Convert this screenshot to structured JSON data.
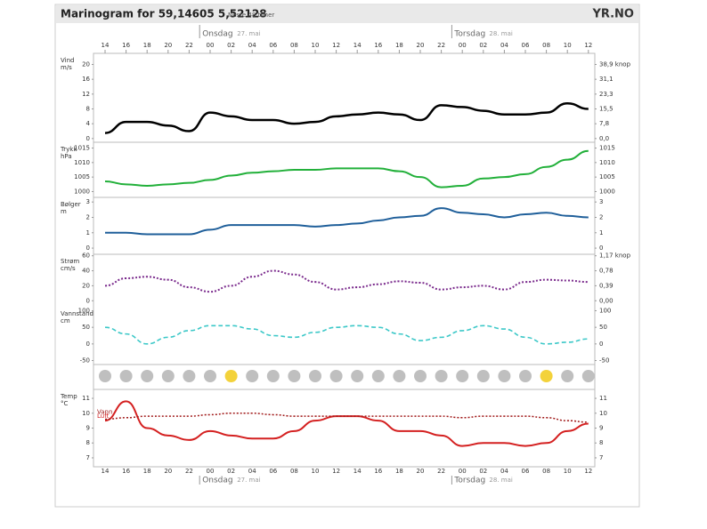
{
  "header": {
    "title": "Marinogram for 59,14605 5,52128",
    "subtitle": "Neste 48 timer",
    "logo": "YR.NO"
  },
  "time_axis": {
    "categories": [
      "14",
      "16",
      "18",
      "20",
      "22",
      "00",
      "02",
      "04",
      "06",
      "08",
      "10",
      "12",
      "14",
      "16",
      "18",
      "20",
      "22",
      "00",
      "02",
      "04",
      "06",
      "08",
      "10",
      "12"
    ],
    "days": [
      {
        "name": "Onsdag",
        "date": "27. mai",
        "start": 5
      },
      {
        "name": "Torsdag",
        "date": "28. mai",
        "start": 17
      }
    ]
  },
  "chart_data": [
    {
      "type": "line",
      "label": "Vind",
      "unit": "m/s",
      "ylim": [
        -1,
        23
      ],
      "yticks": [
        0,
        4,
        8,
        12,
        16,
        20
      ],
      "y2ticks": [
        {
          "value": 0,
          "label": "0,0"
        },
        {
          "value": 4,
          "label": "7,8"
        },
        {
          "value": 8,
          "label": "15,5"
        },
        {
          "value": 12,
          "label": "23,3"
        },
        {
          "value": 16,
          "label": "31,1"
        },
        {
          "value": 20,
          "label": "38,9 knop"
        }
      ],
      "series": [
        {
          "color": "#000000",
          "width": 2.5,
          "values": [
            1.5,
            4.5,
            4.5,
            3.5,
            2,
            7,
            6,
            5,
            5,
            4,
            4.5,
            6,
            6.5,
            7,
            6.5,
            5,
            9,
            8.5,
            7.5,
            6.5,
            6.5,
            7,
            9.5,
            8
          ]
        }
      ]
    },
    {
      "type": "line",
      "label": "Trykk",
      "unit": "hPa",
      "ylim": [
        998,
        1017
      ],
      "yticks": [
        1000,
        1005,
        1010,
        1015
      ],
      "y2ticks": [
        1000,
        1005,
        1010,
        1015
      ],
      "series": [
        {
          "color": "#22b03a",
          "width": 2,
          "values": [
            1003.5,
            1002.5,
            1002,
            1002.5,
            1003,
            1004,
            1005.5,
            1006.5,
            1007,
            1007.5,
            1007.5,
            1008,
            1008,
            1008,
            1007,
            1005,
            1001.5,
            1002,
            1004.5,
            1005,
            1006,
            1008.5,
            1011,
            1014
          ]
        }
      ]
    },
    {
      "type": "line",
      "label": "Bølger",
      "unit": "m",
      "ylim": [
        -0.4,
        3.3
      ],
      "yticks": [
        0,
        1,
        2,
        3
      ],
      "y2ticks": [
        0,
        1,
        2,
        3
      ],
      "series": [
        {
          "color": "#1f5f9a",
          "width": 2,
          "values": [
            1,
            1,
            0.9,
            0.9,
            0.9,
            1.2,
            1.5,
            1.5,
            1.5,
            1.5,
            1.4,
            1.5,
            1.6,
            1.8,
            2,
            2.1,
            2.6,
            2.3,
            2.2,
            2,
            2.2,
            2.3,
            2.1,
            2
          ]
        }
      ]
    },
    {
      "type": "line",
      "label": "Strøm",
      "unit": "cm/s",
      "ylim": [
        -8,
        62
      ],
      "yticks": [
        0,
        20,
        40,
        60
      ],
      "y2ticks": [
        {
          "value": 0,
          "label": "0,00"
        },
        {
          "value": 20,
          "label": "0,39"
        },
        {
          "value": 40,
          "label": "0,78"
        },
        {
          "value": 60,
          "label": "1,17 knop"
        }
      ],
      "series": [
        {
          "color": "#7a2a8c",
          "width": 2,
          "dash": "2 2",
          "values": [
            20,
            30,
            32,
            28,
            18,
            12,
            20,
            32,
            40,
            35,
            25,
            15,
            18,
            22,
            26,
            24,
            15,
            18,
            20,
            15,
            25,
            28,
            27,
            25
          ]
        }
      ]
    },
    {
      "type": "line",
      "label": "Vannstand",
      "unit": "cm",
      "ylim": [
        -62,
        112
      ],
      "yticks": [
        -50,
        0,
        50,
        100
      ],
      "y2ticks": [
        -50,
        0,
        50,
        100
      ],
      "series": [
        {
          "color": "#3cc8c8",
          "width": 1.6,
          "dash": "5 3",
          "values": [
            50,
            30,
            0,
            20,
            40,
            55,
            55,
            45,
            25,
            20,
            35,
            50,
            55,
            50,
            30,
            10,
            20,
            40,
            55,
            45,
            20,
            0,
            5,
            15
          ]
        }
      ]
    },
    {
      "type": "line",
      "label": "Temp",
      "unit": "°C",
      "ylim": [
        6.4,
        11.6
      ],
      "yticks": [
        7,
        8,
        9,
        10,
        11
      ],
      "y2ticks": [
        7,
        8,
        9,
        10,
        11
      ],
      "series": [
        {
          "name": "Luft",
          "color": "#d42020",
          "width": 2,
          "values": [
            9.5,
            10.8,
            9,
            8.5,
            8.2,
            8.8,
            8.5,
            8.3,
            8.3,
            8.8,
            9.5,
            9.8,
            9.8,
            9.5,
            8.8,
            8.8,
            8.5,
            7.8,
            8,
            8,
            7.8,
            8,
            8.8,
            9.3
          ]
        },
        {
          "name": "Vann",
          "color": "#a01818",
          "width": 1.5,
          "dash": "2 2",
          "values": [
            9.6,
            9.7,
            9.8,
            9.8,
            9.8,
            9.9,
            10,
            10,
            9.9,
            9.8,
            9.8,
            9.8,
            9.8,
            9.8,
            9.8,
            9.8,
            9.8,
            9.7,
            9.8,
            9.8,
            9.8,
            9.7,
            9.5,
            9.4
          ]
        }
      ]
    }
  ]
}
